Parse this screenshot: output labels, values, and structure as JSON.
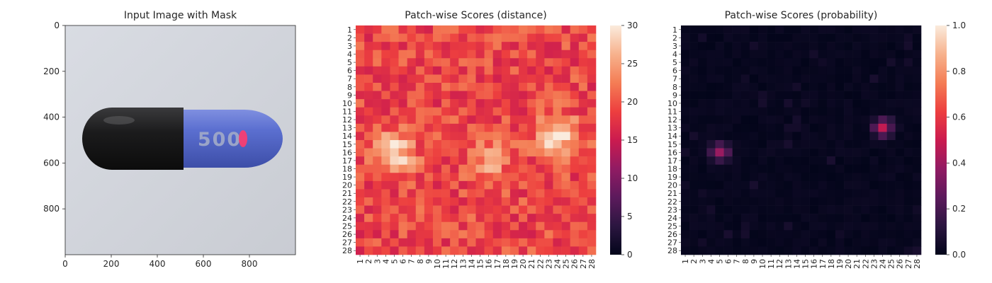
{
  "chart_data": [
    {
      "type": "image",
      "title": "Input Image with Mask",
      "xlim": [
        0,
        1000
      ],
      "ylim": [
        1000,
        0
      ],
      "xticks": [
        "0",
        "200",
        "400",
        "600",
        "800"
      ],
      "yticks": [
        "0",
        "200",
        "400",
        "600",
        "800"
      ],
      "capsule": {
        "body_color": "#5b6fd0",
        "cap_color": "#1b1b1c",
        "print_text": "500",
        "mask_color": "#ff3c6e"
      }
    },
    {
      "type": "heatmap",
      "title": "Patch-wise Scores (distance)",
      "grid": 28,
      "colormap": "rocket",
      "colorbar": {
        "min": 0,
        "max": 30,
        "ticks": [
          "0",
          "5",
          "10",
          "15",
          "20",
          "25",
          "30"
        ]
      },
      "hotspots": [
        {
          "row": 16,
          "col": 5,
          "value": 29
        },
        {
          "row": 14,
          "col": 24,
          "value": 29
        },
        {
          "row": 17,
          "col": 16,
          "value": 25
        }
      ],
      "base_value": 19
    },
    {
      "type": "heatmap",
      "title": "Patch-wise Scores (probability)",
      "grid": 28,
      "colormap": "rocket",
      "colorbar": {
        "min": 0.0,
        "max": 1.0,
        "ticks": [
          "0.0",
          "0.2",
          "0.4",
          "0.6",
          "0.8",
          "1.0"
        ]
      },
      "hotspots": [
        {
          "row": 13,
          "col": 24,
          "value": 0.45
        },
        {
          "row": 16,
          "col": 5,
          "value": 0.38
        }
      ],
      "base_value": 0.01
    }
  ]
}
